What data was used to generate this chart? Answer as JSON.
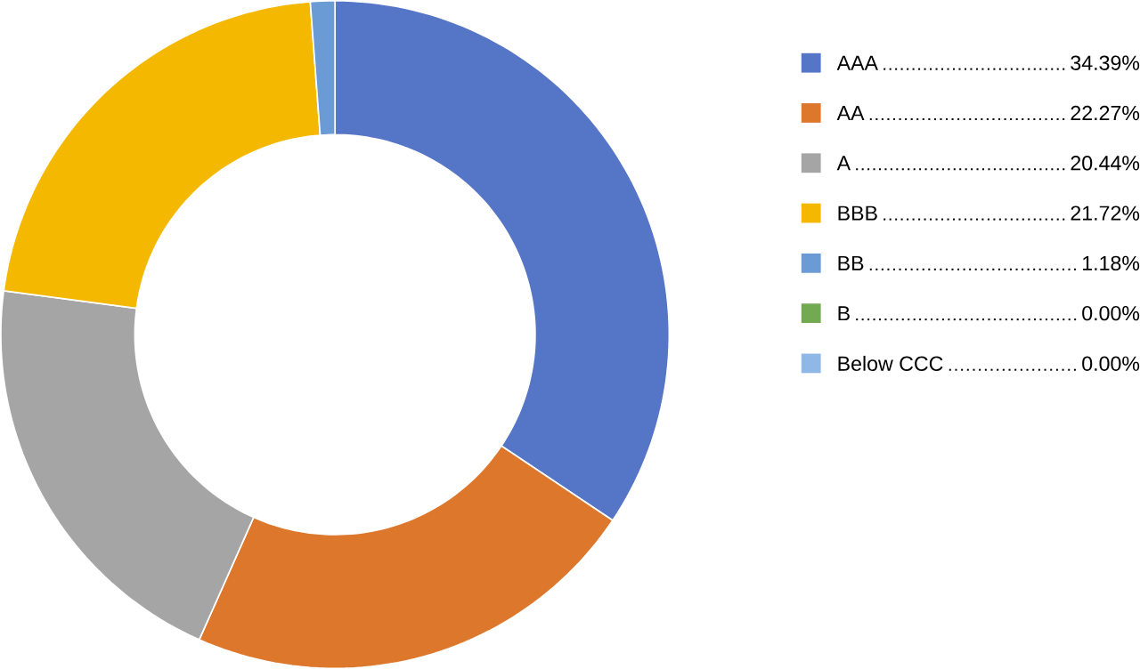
{
  "chart_data": {
    "type": "donut",
    "categories": [
      "AAA",
      "AA",
      "A",
      "BBB",
      "BB",
      "B",
      "Below CCC"
    ],
    "values": [
      34.39,
      22.27,
      20.44,
      21.72,
      1.18,
      0.0,
      0.0
    ],
    "value_labels": [
      "34.39%",
      "22.27%",
      "20.44%",
      "21.72%",
      "1.18%",
      "0.00%",
      "0.00%"
    ],
    "colors": [
      "#5575c6",
      "#dc772c",
      "#a5a5a5",
      "#f4b800",
      "#6a9bd4",
      "#72a951",
      "#8fb8e6"
    ],
    "legend": "right"
  }
}
